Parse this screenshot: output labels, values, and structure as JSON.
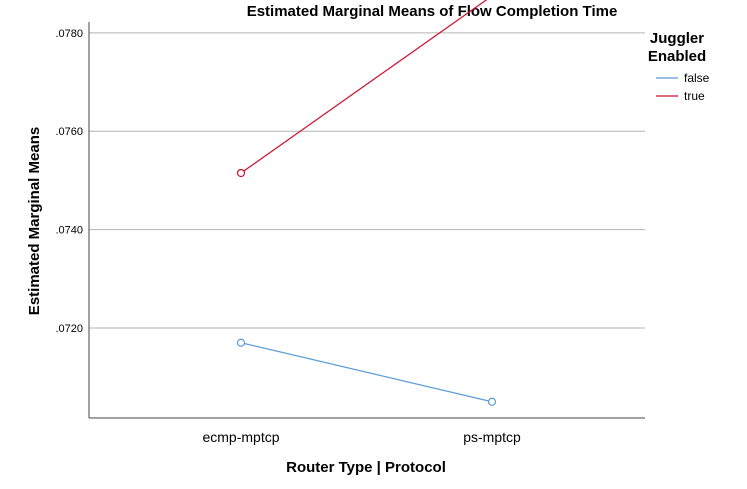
{
  "chart_data": {
    "type": "line",
    "title": "Estimated Marginal Means of Flow Completion Time",
    "xlabel": "Router Type | Protocol",
    "ylabel": "Estimated Marginal Means",
    "categories": [
      "ecmp-mptcp",
      "ps-mptcp"
    ],
    "yticks": [
      0.072,
      0.074,
      0.076,
      0.078
    ],
    "ytick_labels": [
      ".0720",
      ".0740",
      ".0760",
      ".0780"
    ],
    "ylim": [
      0.07017,
      0.07822
    ],
    "grid": true,
    "legend": {
      "title_lines": [
        "Juggler",
        "Enabled"
      ],
      "placement": "right"
    },
    "series": [
      {
        "name": "false",
        "values": [
          0.0717,
          0.0705
        ],
        "color": "#5b9bd5"
      },
      {
        "name": "true",
        "values": [
          0.07515,
          0.07875
        ],
        "color": "#c8102e"
      }
    ],
    "marker": "open-circle"
  }
}
